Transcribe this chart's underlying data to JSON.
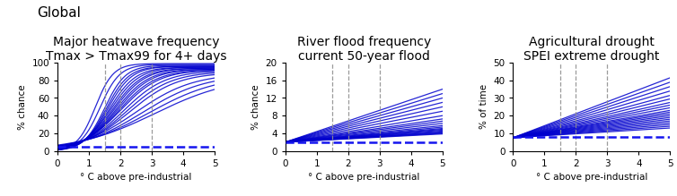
{
  "title": "Global",
  "panels": [
    {
      "title1": "Major heatwave frequency",
      "title2": "Tmax > Tmax99 for 4+ days",
      "ylabel": "% chance",
      "xlabel": "° C above pre-industrial",
      "ylim": [
        0,
        100
      ],
      "yticks": [
        0,
        20,
        40,
        60,
        80,
        100
      ],
      "baseline_y": 5,
      "type": "sigmoid",
      "n_lines": 20,
      "midpoints": [
        1.2,
        1.35,
        1.5,
        1.55,
        1.6,
        1.65,
        1.7,
        1.75,
        1.8,
        1.85,
        1.9,
        1.95,
        2.0,
        2.1,
        2.2,
        2.3,
        2.5,
        2.7,
        2.9,
        3.1
      ],
      "steepness": [
        3.5,
        3.2,
        3.0,
        2.8,
        2.6,
        2.4,
        2.2,
        2.1,
        2.0,
        1.9,
        1.8,
        1.7,
        1.6,
        1.5,
        1.4,
        1.3,
        1.1,
        1.0,
        0.9,
        0.8
      ],
      "max_vals": [
        99,
        98,
        97,
        96,
        96,
        95,
        95,
        94,
        94,
        93,
        93,
        92,
        92,
        91,
        90,
        89,
        88,
        87,
        86,
        85
      ]
    },
    {
      "title1": "River flood frequency",
      "title2": "current 50-year flood",
      "ylabel": "% chance",
      "xlabel": "° C above pre-industrial",
      "ylim": [
        0,
        20
      ],
      "yticks": [
        0,
        4,
        8,
        12,
        16,
        20
      ],
      "baseline_y": 2,
      "type": "linear",
      "n_lines": 20,
      "slopes": [
        2.4,
        2.2,
        2.0,
        1.8,
        1.6,
        1.4,
        1.2,
        1.05,
        0.95,
        0.85,
        0.75,
        0.68,
        0.62,
        0.58,
        0.54,
        0.5,
        0.46,
        0.43,
        0.4,
        0.37
      ],
      "intercepts": [
        2.0,
        2.0,
        2.0,
        2.0,
        2.0,
        2.0,
        2.0,
        2.0,
        2.0,
        2.0,
        2.0,
        2.0,
        2.0,
        2.0,
        2.0,
        2.0,
        2.0,
        2.0,
        2.0,
        2.0
      ]
    },
    {
      "title1": "Agricultural drought",
      "title2": "SPEI extreme drought",
      "ylabel": "% of time",
      "xlabel": "° C above pre-industrial",
      "ylim": [
        0,
        50
      ],
      "yticks": [
        0,
        10,
        20,
        30,
        40,
        50
      ],
      "baseline_y": 8,
      "type": "linear",
      "n_lines": 20,
      "slopes": [
        6.8,
        6.3,
        5.8,
        5.3,
        4.8,
        4.4,
        4.0,
        3.7,
        3.4,
        3.1,
        2.9,
        2.7,
        2.5,
        2.3,
        2.1,
        1.9,
        1.7,
        1.5,
        1.3,
        1.1
      ],
      "intercepts": [
        7.5,
        7.5,
        7.5,
        7.5,
        7.5,
        7.5,
        7.5,
        7.5,
        7.5,
        7.5,
        7.5,
        7.5,
        7.5,
        7.5,
        7.5,
        7.5,
        7.5,
        7.5,
        7.5,
        7.5
      ]
    }
  ],
  "vlines": [
    1.5,
    2.0,
    3.0
  ],
  "line_color": "#0000cd",
  "dashed_color": "#1515ee",
  "vline_color": "#909090",
  "bg_color": "#ffffff",
  "title_fontsize": 10,
  "label_fontsize": 7.5,
  "tick_fontsize": 7.5
}
